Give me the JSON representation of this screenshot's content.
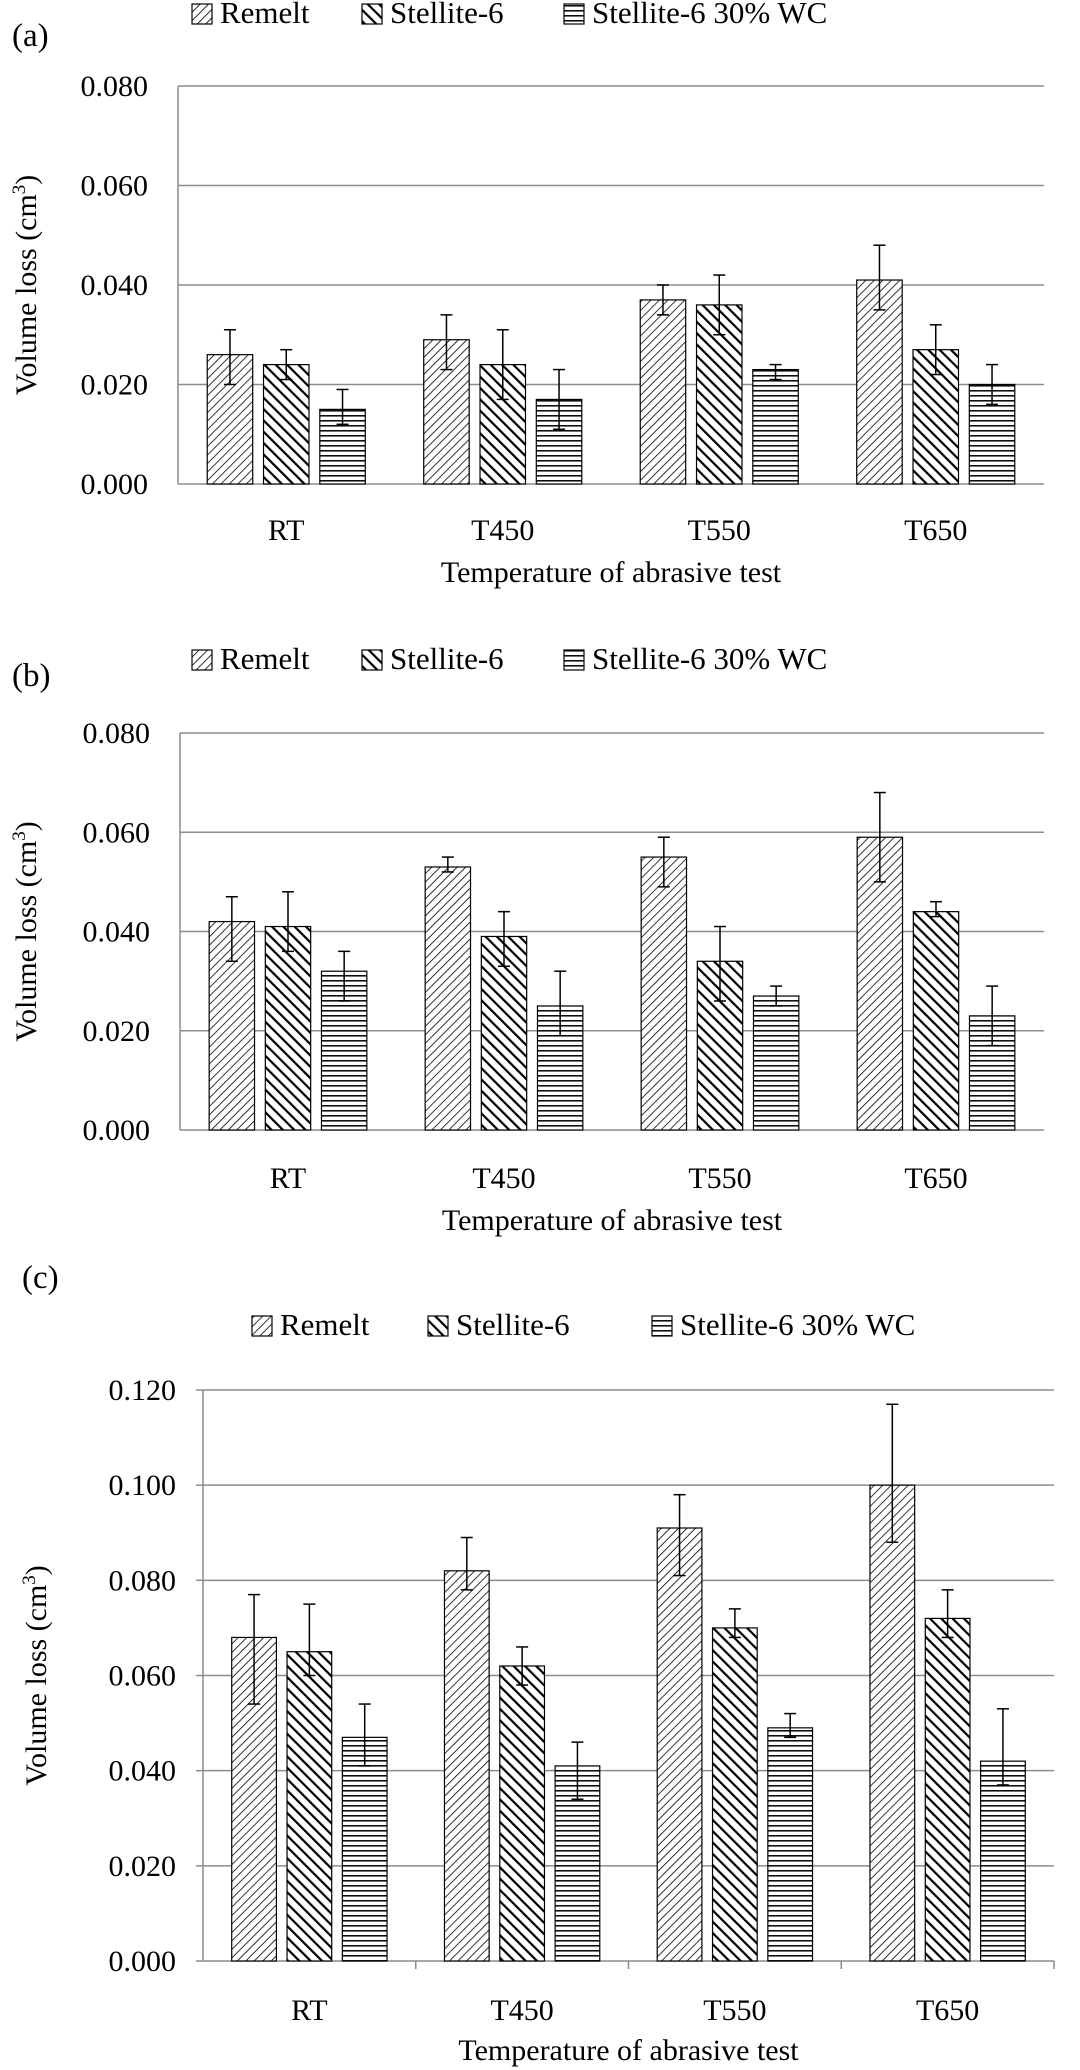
{
  "patterns": {
    "Remelt": "hatch-light",
    "Stellite-6": "hatch-heavy",
    "Stellite-6 30% WC": "horizontal-lines"
  },
  "colors": {
    "bar_fill": "#ffffff",
    "stroke": "#000000",
    "grid": "#8c8c8c",
    "axis": "#8c8c8c"
  },
  "chart_data": [
    {
      "type": "bar",
      "panel": "(a)",
      "title": "",
      "xlabel": "Temperature  of abrasive test",
      "ylabel_main": "Volume  loss (cm",
      "ylabel_sup": "3",
      "ylabel_close": ")",
      "categories": [
        "RT",
        "T450",
        "T550",
        "T650"
      ],
      "ylim": [
        0,
        0.08
      ],
      "yticks": [
        0.0,
        0.02,
        0.04,
        0.06,
        0.08
      ],
      "ytick_labels": [
        "0.000",
        "0.020",
        "0.040",
        "0.060",
        "0.080"
      ],
      "legend_position": "top",
      "grid": true,
      "series": [
        {
          "name": "Remelt",
          "values": [
            0.026,
            0.029,
            0.037,
            0.041
          ],
          "err_low": [
            0.02,
            0.023,
            0.034,
            0.035
          ],
          "err_high": [
            0.031,
            0.034,
            0.04,
            0.048
          ]
        },
        {
          "name": "Stellite-6",
          "values": [
            0.024,
            0.024,
            0.036,
            0.027
          ],
          "err_low": [
            0.021,
            0.017,
            0.03,
            0.022
          ],
          "err_high": [
            0.027,
            0.031,
            0.042,
            0.032
          ]
        },
        {
          "name": "Stellite-6 30% WC",
          "values": [
            0.015,
            0.017,
            0.023,
            0.02
          ],
          "err_low": [
            0.012,
            0.011,
            0.021,
            0.016
          ],
          "err_high": [
            0.019,
            0.023,
            0.024,
            0.024
          ]
        }
      ]
    },
    {
      "type": "bar",
      "panel": "(b)",
      "title": "",
      "xlabel": "Temperature  of abrasive test",
      "ylabel_main": "Volume  loss (cm",
      "ylabel_sup": "3",
      "ylabel_close": ")",
      "categories": [
        "RT",
        "T450",
        "T550",
        "T650"
      ],
      "ylim": [
        0,
        0.08
      ],
      "yticks": [
        0.0,
        0.02,
        0.04,
        0.06,
        0.08
      ],
      "ytick_labels": [
        "0.000",
        "0.020",
        "0.040",
        "0.060",
        "0.080"
      ],
      "legend_position": "top",
      "grid": true,
      "series": [
        {
          "name": "Remelt",
          "values": [
            0.042,
            0.053,
            0.055,
            0.059
          ],
          "err_low": [
            0.034,
            0.052,
            0.049,
            0.05
          ],
          "err_high": [
            0.047,
            0.055,
            0.059,
            0.068
          ]
        },
        {
          "name": "Stellite-6",
          "values": [
            0.041,
            0.039,
            0.034,
            0.044
          ],
          "err_low": [
            0.036,
            0.033,
            0.026,
            0.043
          ],
          "err_high": [
            0.048,
            0.044,
            0.041,
            0.046
          ]
        },
        {
          "name": "Stellite-6 30% WC",
          "values": [
            0.032,
            0.025,
            0.027,
            0.023
          ],
          "err_low": [
            0.026,
            0.019,
            0.025,
            0.017
          ],
          "err_high": [
            0.036,
            0.032,
            0.029,
            0.029
          ]
        }
      ]
    },
    {
      "type": "bar",
      "panel": "(c)",
      "title": "",
      "xlabel": "Temperature  of abrasive test",
      "ylabel_main": "Volume  loss (cm",
      "ylabel_sup": "3",
      "ylabel_close": ")",
      "categories": [
        "RT",
        "T450",
        "T550",
        "T650"
      ],
      "ylim": [
        0,
        0.12
      ],
      "yticks": [
        0.0,
        0.02,
        0.04,
        0.06,
        0.08,
        0.1,
        0.12
      ],
      "ytick_labels": [
        "0.000",
        "0.020",
        "0.040",
        "0.060",
        "0.080",
        "0.100",
        "0.120"
      ],
      "legend_position": "top",
      "grid": true,
      "series": [
        {
          "name": "Remelt",
          "values": [
            0.068,
            0.082,
            0.091,
            0.1
          ],
          "err_low": [
            0.054,
            0.078,
            0.081,
            0.088
          ],
          "err_high": [
            0.077,
            0.089,
            0.098,
            0.117
          ]
        },
        {
          "name": "Stellite-6",
          "values": [
            0.065,
            0.062,
            0.07,
            0.072
          ],
          "err_low": [
            0.06,
            0.058,
            0.068,
            0.068
          ],
          "err_high": [
            0.075,
            0.066,
            0.074,
            0.078
          ]
        },
        {
          "name": "Stellite-6 30% WC",
          "values": [
            0.047,
            0.041,
            0.049,
            0.042
          ],
          "err_low": [
            0.041,
            0.034,
            0.047,
            0.037
          ],
          "err_high": [
            0.054,
            0.046,
            0.052,
            0.053
          ]
        }
      ]
    }
  ]
}
